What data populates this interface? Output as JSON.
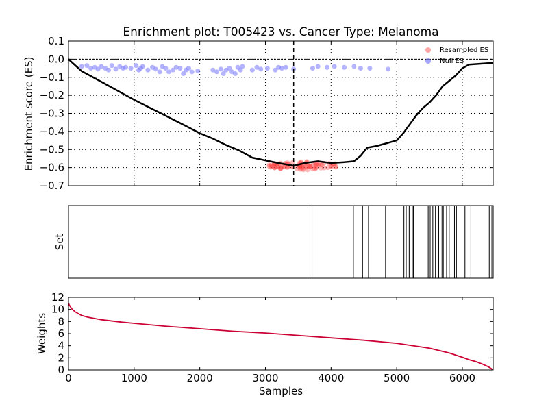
{
  "chart_data": [
    {
      "panel": "enrichment",
      "type": "line",
      "title": "Enrichment plot: T005423 vs. Cancer Type: Melanoma",
      "ylabel": "Enrichment score (ES)",
      "xlim": [
        0,
        6470
      ],
      "ylim": [
        -0.7,
        0.1
      ],
      "x_ticks": [
        0,
        1000,
        2000,
        3000,
        4000,
        5000,
        6000
      ],
      "y_ticks": [
        0.1,
        0.0,
        -0.1,
        -0.2,
        -0.3,
        -0.4,
        -0.5,
        -0.6,
        -0.7
      ],
      "y_tick_labels": [
        "0.1",
        "0.0",
        "−0.1",
        "−0.2",
        "−0.3",
        "−0.4",
        "−0.5",
        "−0.6",
        "−0.7"
      ],
      "grid": true,
      "legend_position": "top-right",
      "legend": [
        {
          "label": "Resampled ES",
          "color": "#ff8080"
        },
        {
          "label": "Null ES",
          "color": "#8080ff"
        }
      ],
      "vertical_line_x": 3430,
      "series": [
        {
          "name": "ES",
          "color": "#000000",
          "x": [
            0,
            200,
            400,
            600,
            800,
            1000,
            1200,
            1400,
            1600,
            1800,
            2000,
            2200,
            2400,
            2600,
            2800,
            3000,
            3200,
            3430,
            3600,
            3800,
            4000,
            4200,
            4350,
            4450,
            4550,
            4700,
            4900,
            5000,
            5100,
            5200,
            5300,
            5400,
            5500,
            5600,
            5700,
            5800,
            5900,
            6000,
            6100,
            6470
          ],
          "y": [
            0.0,
            -0.066,
            -0.105,
            -0.145,
            -0.185,
            -0.225,
            -0.262,
            -0.298,
            -0.335,
            -0.372,
            -0.41,
            -0.44,
            -0.475,
            -0.505,
            -0.545,
            -0.56,
            -0.575,
            -0.59,
            -0.575,
            -0.565,
            -0.575,
            -0.57,
            -0.565,
            -0.535,
            -0.49,
            -0.48,
            -0.46,
            -0.45,
            -0.41,
            -0.36,
            -0.31,
            -0.27,
            -0.24,
            -0.2,
            -0.15,
            -0.12,
            -0.09,
            -0.05,
            -0.03,
            -0.02
          ]
        }
      ],
      "resampled_es": {
        "color": "#ff4040",
        "x_range": [
          3050,
          4120
        ],
        "y_range": [
          -0.615,
          -0.565
        ],
        "count": 90
      },
      "null_es": {
        "color": "#8080ff",
        "x": [
          200,
          280,
          340,
          400,
          450,
          500,
          560,
          610,
          660,
          720,
          780,
          830,
          870,
          950,
          1030,
          1070,
          1100,
          1130,
          1210,
          1280,
          1330,
          1390,
          1430,
          1480,
          1530,
          1590,
          1640,
          1700,
          1750,
          1790,
          1830,
          1880,
          1970,
          2200,
          2260,
          2320,
          2360,
          2400,
          2450,
          2490,
          2540,
          2580,
          2620,
          2650,
          2800,
          2870,
          2930,
          3030,
          3150,
          3200,
          3250,
          3310,
          3430,
          3720,
          3800,
          3940,
          4050,
          4200,
          4350,
          4450,
          4590,
          4870
        ],
        "y": [
          -0.04,
          -0.035,
          -0.05,
          -0.045,
          -0.055,
          -0.04,
          -0.05,
          -0.06,
          -0.035,
          -0.055,
          -0.04,
          -0.05,
          -0.045,
          -0.05,
          -0.035,
          -0.06,
          -0.05,
          -0.04,
          -0.06,
          -0.045,
          -0.055,
          -0.07,
          -0.04,
          -0.05,
          -0.07,
          -0.06,
          -0.045,
          -0.05,
          -0.08,
          -0.06,
          -0.05,
          -0.07,
          -0.065,
          -0.06,
          -0.07,
          -0.055,
          -0.08,
          -0.06,
          -0.05,
          -0.07,
          -0.08,
          -0.045,
          -0.06,
          -0.04,
          -0.06,
          -0.045,
          -0.055,
          -0.05,
          -0.06,
          -0.045,
          -0.05,
          -0.045,
          -0.055,
          -0.05,
          -0.04,
          -0.045,
          -0.04,
          -0.045,
          -0.04,
          -0.05,
          -0.05,
          -0.055
        ]
      }
    },
    {
      "panel": "set",
      "type": "bar",
      "ylabel": "Set",
      "xlim": [
        0,
        6470
      ],
      "hits": [
        3710,
        4340,
        4480,
        4570,
        4830,
        5110,
        5145,
        5190,
        5250,
        5260,
        5480,
        5510,
        5550,
        5590,
        5640,
        5690,
        5710,
        5760,
        5800,
        5880,
        5910,
        6040,
        6130,
        6410,
        6450
      ]
    },
    {
      "panel": "weights",
      "type": "line",
      "xlabel": "Samples",
      "ylabel": "Weights",
      "xlim": [
        0,
        6470
      ],
      "ylim": [
        0,
        12
      ],
      "x_ticks": [
        0,
        1000,
        2000,
        3000,
        4000,
        5000,
        6000
      ],
      "y_ticks": [
        0,
        2,
        4,
        6,
        8,
        10,
        12
      ],
      "series": [
        {
          "name": "Weights",
          "color": "#cc0033",
          "x": [
            0,
            20,
            50,
            100,
            150,
            200,
            300,
            500,
            800,
            1000,
            1500,
            2000,
            2500,
            3000,
            3500,
            4000,
            4500,
            5000,
            5500,
            5800,
            6000,
            6100,
            6200,
            6300,
            6400,
            6470
          ],
          "y": [
            11.0,
            10.6,
            10.1,
            9.6,
            9.3,
            9.0,
            8.7,
            8.3,
            7.9,
            7.7,
            7.2,
            6.8,
            6.4,
            6.1,
            5.7,
            5.3,
            4.9,
            4.4,
            3.6,
            2.8,
            2.1,
            1.7,
            1.4,
            1.0,
            0.5,
            0.0
          ]
        }
      ]
    }
  ]
}
